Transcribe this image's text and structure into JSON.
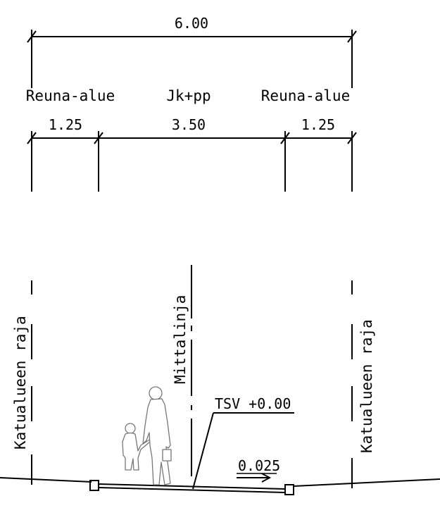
{
  "dimensions": {
    "total": "6.00",
    "left_width": "1.25",
    "middle_width": "3.50",
    "right_width": "1.25"
  },
  "zones": {
    "left": "Reuna-alue",
    "middle": "Jk+pp",
    "right": "Reuna-alue"
  },
  "boundaries": {
    "left": "Katualueen raja",
    "right": "Katualueen raja",
    "center": "Mittalinja"
  },
  "level_label": "TSV +0.00",
  "slope_label": "0.025",
  "colors": {
    "line": "#000000",
    "people_outline": "#777777"
  },
  "icons": [
    "adult-figure-icon",
    "child-figure-icon",
    "slope-arrow-icon"
  ]
}
